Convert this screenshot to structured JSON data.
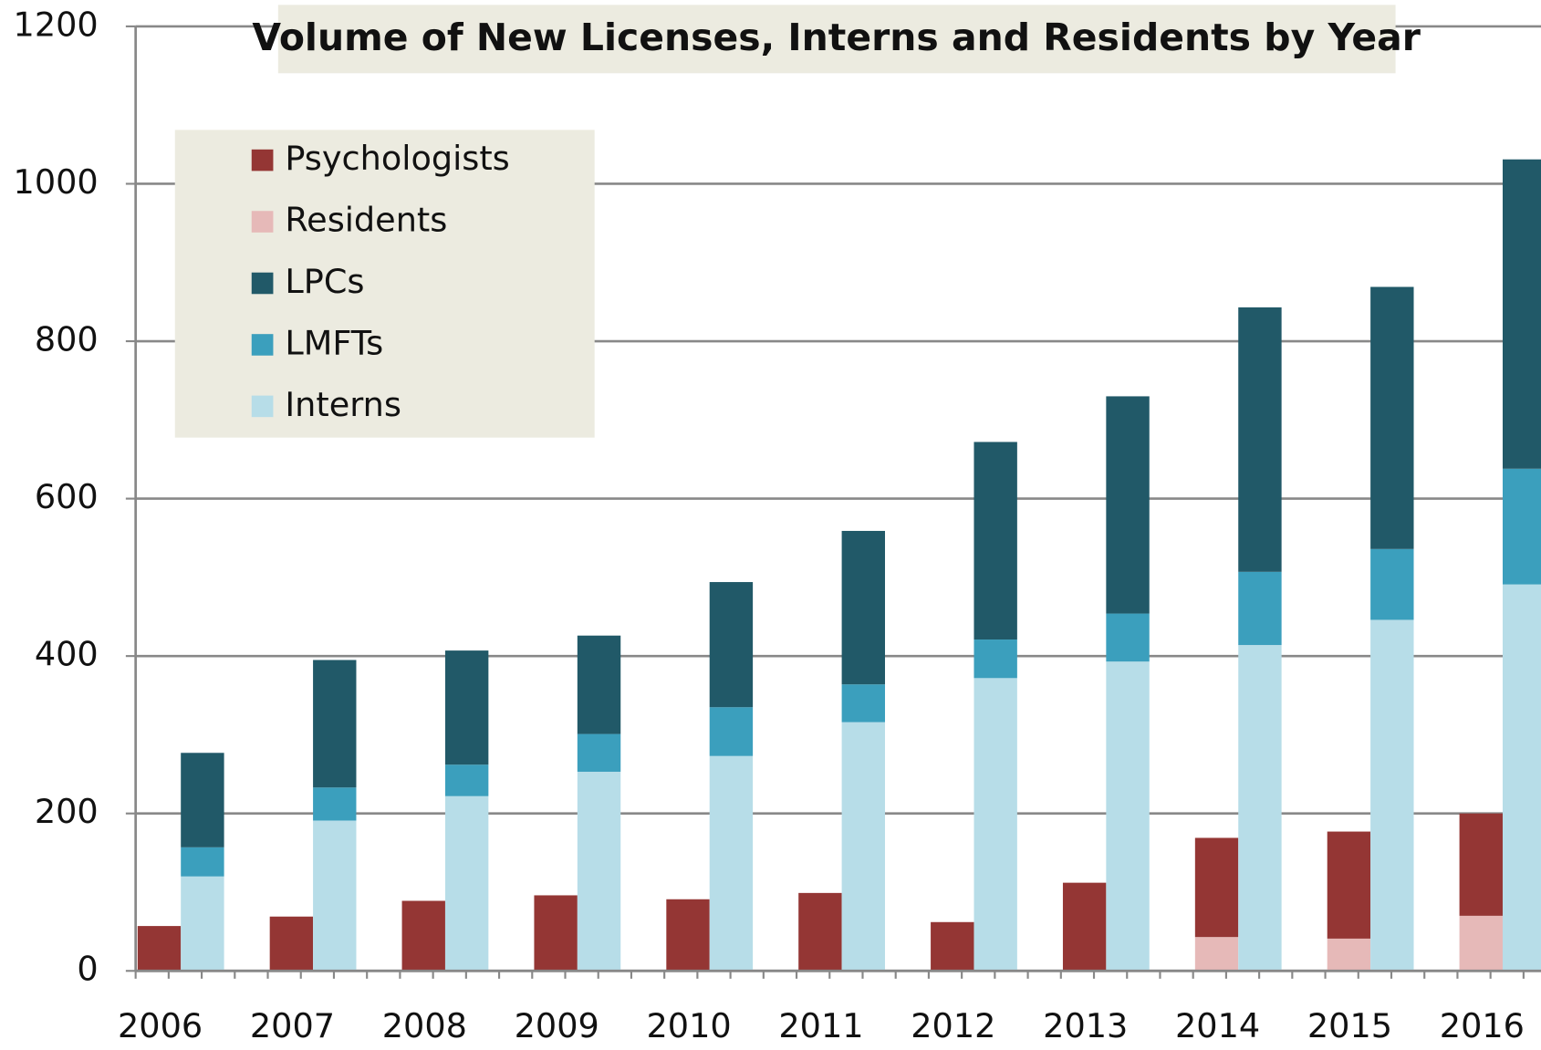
{
  "chart_data": {
    "type": "stacked-bar",
    "title": "Volume of New Licenses, Interns and Residents by Year",
    "categories": [
      "2006",
      "2007",
      "2008",
      "2009",
      "2010",
      "2011",
      "2012",
      "2013",
      "2014",
      "2015",
      "2016"
    ],
    "series": [
      {
        "name": "Psychologists",
        "color": "#943634",
        "stack": 1,
        "values": [
          57,
          69,
          89,
          96,
          91,
          99,
          62,
          112,
          126,
          136,
          130
        ]
      },
      {
        "name": "Residents",
        "color": "#e6b9b8",
        "stack": 1,
        "values": [
          0,
          0,
          0,
          0,
          0,
          0,
          0,
          0,
          43,
          41,
          70
        ]
      },
      {
        "name": "LPCs",
        "color": "#215968",
        "stack": 2,
        "values": [
          120,
          162,
          145,
          125,
          159,
          195,
          251,
          276,
          336,
          333,
          393
        ]
      },
      {
        "name": "LMFTs",
        "color": "#3b9fbd",
        "stack": 2,
        "values": [
          37,
          42,
          40,
          48,
          62,
          48,
          49,
          61,
          93,
          90,
          147
        ]
      },
      {
        "name": "Interns",
        "color": "#b7dde8",
        "stack": 2,
        "values": [
          120,
          191,
          222,
          253,
          273,
          316,
          372,
          393,
          414,
          446,
          491
        ]
      }
    ],
    "ylim": [
      0,
      1200
    ],
    "yticks": [
      0,
      200,
      400,
      600,
      800,
      1000,
      1200
    ],
    "grid": true,
    "legend": "upper-left"
  }
}
